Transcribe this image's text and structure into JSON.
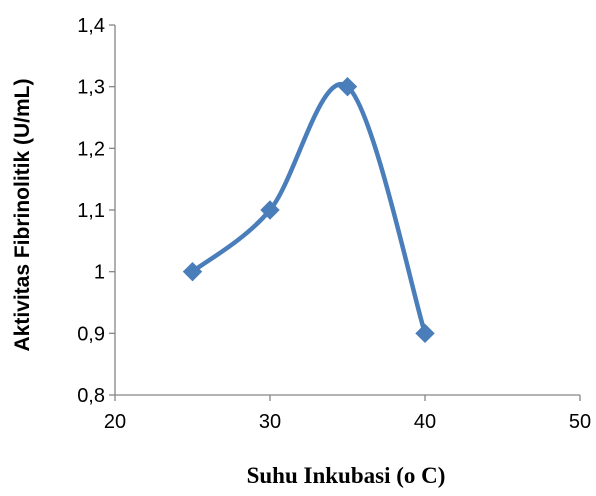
{
  "chart_data": {
    "type": "line",
    "title": "",
    "xlabel": "Suhu Inkubasi (o C)",
    "ylabel": "Aktivitas Fibrinolitik (U/mL)",
    "xlim": [
      20,
      50
    ],
    "ylim": [
      0.8,
      1.4
    ],
    "x_ticks": [
      20,
      30,
      40,
      50
    ],
    "y_ticks": [
      0.8,
      0.9,
      1.0,
      1.1,
      1.2,
      1.3,
      1.4
    ],
    "x_tick_labels": [
      "20",
      "30",
      "40",
      "50"
    ],
    "y_tick_labels": [
      "0,8",
      "0,9",
      "1",
      "1,1",
      "1,2",
      "1,3",
      "1,4"
    ],
    "grid": false,
    "legend": "none",
    "smooth": true,
    "marker": "diamond",
    "series": [
      {
        "color": "#4a7ebb",
        "x": [
          25,
          30,
          35,
          40
        ],
        "y": [
          1.0,
          1.1,
          1.3,
          0.9
        ]
      }
    ]
  }
}
